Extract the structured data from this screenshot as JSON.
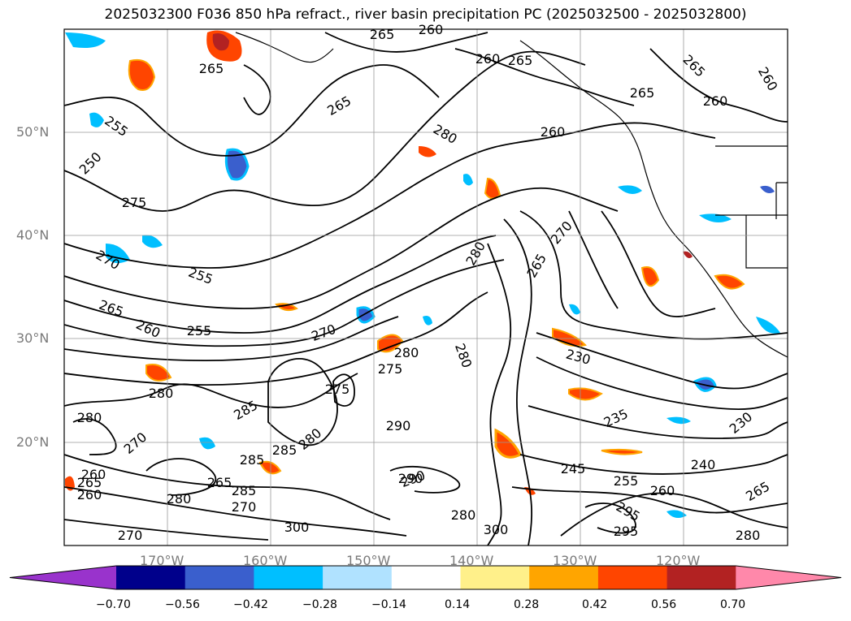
{
  "title": "2025032300 F036 850 hPa refract., river basin precipitation PC (2025032500 - 2025032800)",
  "lat_labels": [
    "50°N",
    "40°N",
    "30°N",
    "20°N"
  ],
  "lon_labels": [
    "170°W",
    "160°W",
    "150°W",
    "140°W",
    "130°W",
    "120°W"
  ],
  "colorbar": {
    "ticks": [
      "−0.70",
      "−0.56",
      "−0.42",
      "−0.28",
      "−0.14",
      "0.14",
      "0.28",
      "0.42",
      "0.56",
      "0.70"
    ],
    "colors": [
      "#9933cc",
      "#00008b",
      "#3a5fcd",
      "#00bfff",
      "#b0e2ff",
      "#ffffff",
      "#fff08a",
      "#ffa500",
      "#ff4500",
      "#b22222",
      "#ff88aa"
    ]
  },
  "contour_labels": [
    "265",
    "260",
    "265",
    "265",
    "255",
    "250",
    "265",
    "260",
    "260",
    "265",
    "265",
    "260",
    "260",
    "280",
    "275",
    "270",
    "265",
    "255",
    "270",
    "265",
    "260",
    "255",
    "270",
    "275",
    "280",
    "280",
    "285",
    "230",
    "235",
    "230",
    "240",
    "245",
    "255",
    "260",
    "265",
    "280",
    "280",
    "290",
    "300",
    "285",
    "280",
    "270",
    "265",
    "260",
    "280",
    "280",
    "285",
    "280",
    "270",
    "290",
    "300",
    "275",
    "285",
    "290",
    "295",
    "280",
    "260",
    "265",
    "295",
    "270"
  ]
}
